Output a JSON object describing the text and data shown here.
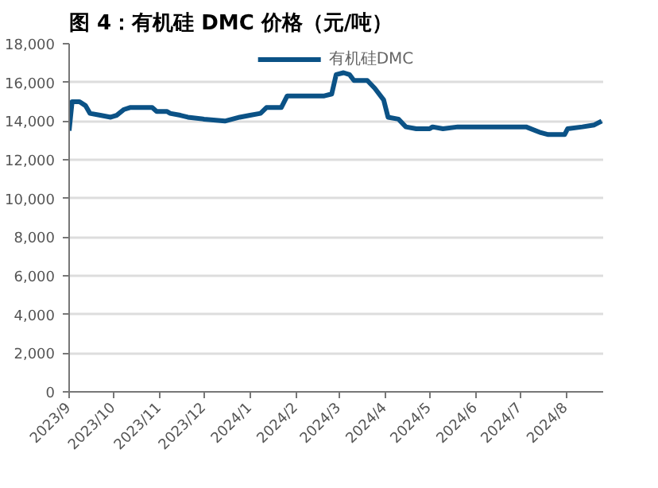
{
  "chart_data": {
    "type": "line",
    "title": "图 4：有机硅 DMC 价格（元/吨）",
    "x": [
      "2023-09-01",
      "2023-09-03",
      "2023-09-08",
      "2023-09-12",
      "2023-09-15",
      "2023-09-22",
      "2023-09-29",
      "2023-10-03",
      "2023-10-08",
      "2023-10-12",
      "2023-10-27",
      "2023-10-30",
      "2023-11-06",
      "2023-11-08",
      "2023-11-15",
      "2023-11-20",
      "2023-12-01",
      "2023-12-15",
      "2023-12-25",
      "2024-01-01",
      "2024-01-08",
      "2024-01-12",
      "2024-01-22",
      "2024-01-26",
      "2024-02-10",
      "2024-02-20",
      "2024-02-25",
      "2024-02-28",
      "2024-03-04",
      "2024-03-08",
      "2024-03-11",
      "2024-03-20",
      "2024-03-25",
      "2024-03-31",
      "2024-04-03",
      "2024-04-10",
      "2024-04-15",
      "2024-04-22",
      "2024-05-01",
      "2024-05-03",
      "2024-05-10",
      "2024-05-20",
      "2024-06-01",
      "2024-06-20",
      "2024-07-05",
      "2024-07-15",
      "2024-07-20",
      "2024-07-31",
      "2024-08-02",
      "2024-08-12",
      "2024-08-20",
      "2024-08-25"
    ],
    "series": [
      {
        "name": "有机硅DMC",
        "color": "#0b5286",
        "values": [
          13500,
          15000,
          15000,
          14800,
          14400,
          14300,
          14200,
          14300,
          14600,
          14700,
          14700,
          14500,
          14500,
          14400,
          14300,
          14200,
          14100,
          14000,
          14200,
          14300,
          14400,
          14700,
          14700,
          15300,
          15300,
          15300,
          15400,
          16400,
          16500,
          16400,
          16100,
          16100,
          15700,
          15100,
          14200,
          14100,
          13700,
          13600,
          13600,
          13700,
          13600,
          13700,
          13700,
          13700,
          13700,
          13400,
          13300,
          13300,
          13600,
          13700,
          13800,
          14000
        ]
      }
    ],
    "xlim": [
      "2023-09-01",
      "2024-08-26"
    ],
    "xticks": [
      {
        "value": "2023-09-01",
        "label": "2023/9"
      },
      {
        "value": "2023-10-01",
        "label": "2023/10"
      },
      {
        "value": "2023-11-01",
        "label": "2023/11"
      },
      {
        "value": "2023-12-01",
        "label": "2023/12"
      },
      {
        "value": "2024-01-01",
        "label": "2024/1"
      },
      {
        "value": "2024-02-01",
        "label": "2024/2"
      },
      {
        "value": "2024-03-01",
        "label": "2024/3"
      },
      {
        "value": "2024-04-01",
        "label": "2024/4"
      },
      {
        "value": "2024-05-01",
        "label": "2024/5"
      },
      {
        "value": "2024-06-01",
        "label": "2024/6"
      },
      {
        "value": "2024-07-01",
        "label": "2024/7"
      },
      {
        "value": "2024-08-01",
        "label": "2024/8"
      }
    ],
    "ylim": [
      0,
      18000
    ],
    "yticks": [
      {
        "value": 0,
        "label": "0"
      },
      {
        "value": 2000,
        "label": "2,000"
      },
      {
        "value": 4000,
        "label": "4,000"
      },
      {
        "value": 6000,
        "label": "6,000"
      },
      {
        "value": 8000,
        "label": "8,000"
      },
      {
        "value": 10000,
        "label": "10,000"
      },
      {
        "value": 12000,
        "label": "12,000"
      },
      {
        "value": 14000,
        "label": "14,000"
      },
      {
        "value": 16000,
        "label": "16,000"
      },
      {
        "value": 18000,
        "label": "18,000"
      }
    ],
    "grid": "y",
    "legend": "top",
    "marker": "none",
    "line_style": "solid"
  }
}
